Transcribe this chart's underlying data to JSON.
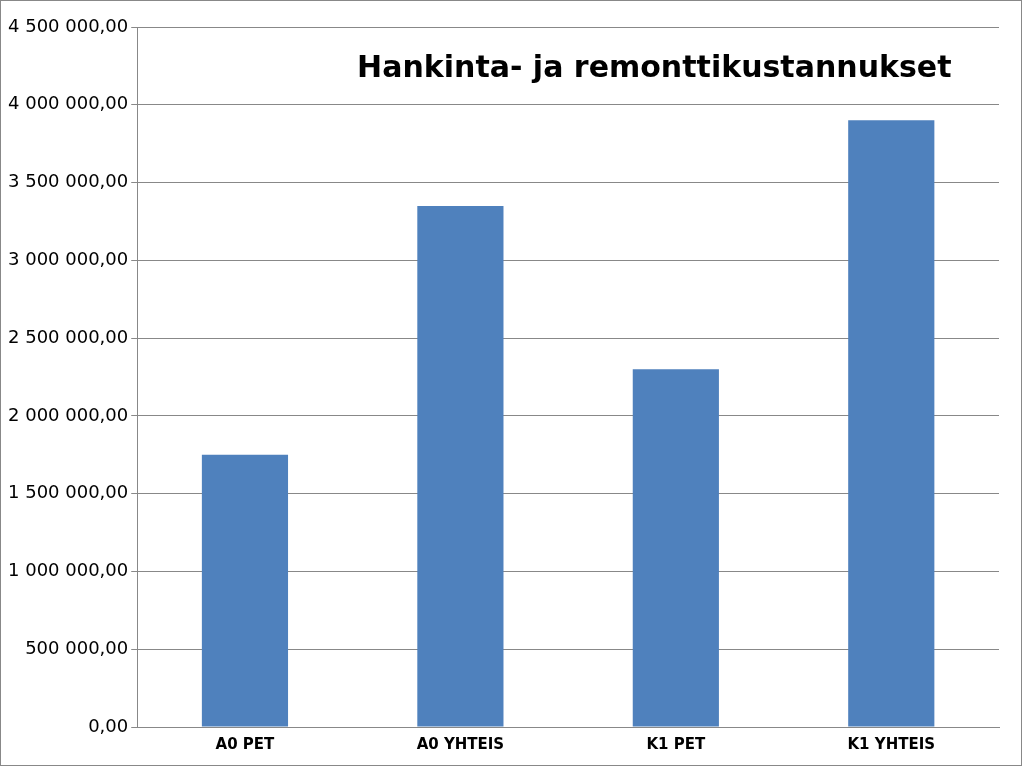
{
  "chart_data": {
    "type": "bar",
    "title": "Hankinta- ja remonttikustannukset",
    "categories": [
      "A0 PET",
      "A0 YHTEIS",
      "K1 PET",
      "K1 YHTEIS"
    ],
    "values": [
      1750000,
      3350000,
      2300000,
      3900000
    ],
    "color": "#4f81bd",
    "ylim": [
      0,
      4500000
    ],
    "yticks": [
      {
        "value": 0,
        "label": "0,00"
      },
      {
        "value": 500000,
        "label": "500 000,00"
      },
      {
        "value": 1000000,
        "label": "1 000 000,00"
      },
      {
        "value": 1500000,
        "label": "1 500 000,00"
      },
      {
        "value": 2000000,
        "label": "2 000 000,00"
      },
      {
        "value": 2500000,
        "label": "2 500 000,00"
      },
      {
        "value": 3000000,
        "label": "3 000 000,00"
      },
      {
        "value": 3500000,
        "label": "3 500 000,00"
      },
      {
        "value": 4000000,
        "label": "4 000 000,00"
      },
      {
        "value": 4500000,
        "label": "4 500 000,00"
      }
    ],
    "grid": "y"
  }
}
